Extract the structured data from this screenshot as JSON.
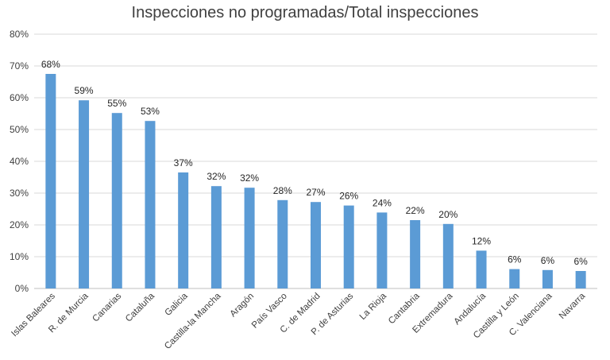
{
  "chart_data": {
    "type": "bar",
    "title": "Inspecciones no programadas/Total inspecciones",
    "xlabel": "",
    "ylabel": "",
    "ylim": [
      0,
      80
    ],
    "yticks": [
      "0%",
      "10%",
      "20%",
      "30%",
      "40%",
      "50%",
      "60%",
      "70%",
      "80%"
    ],
    "grid": true,
    "bar_color": "#5b9bd5",
    "categories": [
      "Islas Baleares",
      "R. de Murcia",
      "Canarias",
      "Cataluña",
      "Galicia",
      "Castilla-la Mancha",
      "Aragón",
      "País Vasco",
      "C. de Madrid",
      "P. de Asturias",
      "La Rioja",
      "Cantabria",
      "Extremadura",
      "Andalucía",
      "Castilla y León",
      "C. Valenciana",
      "Navarra"
    ],
    "values": [
      67.5,
      59.2,
      55.2,
      52.7,
      36.5,
      32.2,
      31.7,
      27.8,
      27.2,
      26.1,
      23.9,
      21.5,
      20.3,
      11.9,
      6.1,
      5.8,
      5.5
    ],
    "data_labels": [
      "68%",
      "59%",
      "55%",
      "53%",
      "37%",
      "32%",
      "32%",
      "28%",
      "27%",
      "26%",
      "24%",
      "22%",
      "20%",
      "12%",
      "6%",
      "6%",
      "6%"
    ]
  }
}
